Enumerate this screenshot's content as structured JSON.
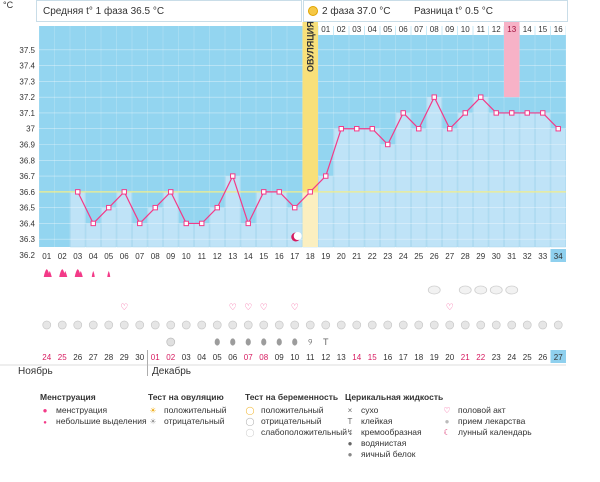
{
  "header": {
    "phase1_label": "Средняя t° 1 фаза",
    "phase1_value": "36.5 °C",
    "phase2_label": "2 фаза",
    "phase2_value": "37.0 °C",
    "diff_label": "Разница t°",
    "diff_value": "0.5 °C"
  },
  "chart_data": {
    "type": "line",
    "title": "Базальная температура",
    "ylabel": "°C",
    "ylim": [
      36.2,
      37.6
    ],
    "y_ticks": [
      "37.5",
      "37.4",
      "37.3",
      "37.2",
      "37.1",
      "37",
      "36.9",
      "36.8",
      "36.7",
      "36.6",
      "36.5",
      "36.4",
      "36.3",
      "36.2"
    ],
    "cycle_days": [
      "01",
      "02",
      "03",
      "04",
      "05",
      "06",
      "07",
      "08",
      "09",
      "10",
      "11",
      "12",
      "13",
      "14",
      "15",
      "16",
      "17",
      "18",
      "19",
      "20",
      "21",
      "22",
      "23",
      "24",
      "25",
      "26",
      "27",
      "28",
      "29",
      "30",
      "31",
      "32",
      "33",
      "34"
    ],
    "luteal_day_labels": [
      "01",
      "02",
      "03",
      "04",
      "05",
      "06",
      "07",
      "08",
      "09",
      "10",
      "11",
      "12",
      "13",
      "14",
      "15",
      "16"
    ],
    "calendar_dates": [
      "24",
      "25",
      "26",
      "27",
      "28",
      "29",
      "30",
      "01",
      "02",
      "03",
      "04",
      "05",
      "06",
      "07",
      "08",
      "09",
      "10",
      "11",
      "12",
      "13",
      "14",
      "15",
      "16",
      "17",
      "18",
      "19",
      "20",
      "21",
      "22",
      "23",
      "24",
      "25",
      "26",
      "27"
    ],
    "calendar_red_index": [
      0,
      1,
      7,
      8,
      13,
      14,
      20,
      21,
      27,
      28
    ],
    "temperatures": [
      null,
      null,
      36.6,
      36.4,
      36.5,
      36.6,
      36.4,
      36.5,
      36.6,
      36.4,
      36.4,
      36.5,
      36.7,
      36.4,
      36.6,
      36.6,
      36.5,
      36.6,
      36.7,
      37.0,
      37.0,
      37.0,
      36.9,
      37.1,
      37.0,
      37.2,
      37.0,
      37.1,
      37.2,
      37.1,
      37.1,
      37.1,
      37.1,
      37.0
    ],
    "coverline": 36.6,
    "ovulation_label": "ОВУЛЯЦИЯ",
    "ovulation_day_index": 17,
    "highlight_luteal_day": "13",
    "current_day_index": 33,
    "months": [
      "Ноябрь",
      "Декабрь"
    ],
    "markers": {
      "menstruation": [
        0,
        1,
        2
      ],
      "spotting": [
        3,
        4
      ],
      "intercourse": [
        5,
        12,
        13,
        14,
        16,
        26
      ],
      "pregnancy_tests": [
        25,
        27,
        28,
        29,
        30
      ],
      "pills": [
        0,
        1,
        2,
        3,
        4,
        5,
        6,
        7,
        8,
        9,
        10,
        11,
        12,
        13,
        14,
        15,
        16,
        17,
        18,
        19,
        20,
        21,
        22,
        23,
        24,
        25,
        26,
        27,
        28,
        29,
        30,
        31,
        32,
        33
      ],
      "mucus_eggwhite": [
        11,
        12,
        13,
        14,
        15,
        16
      ],
      "mucus_creamy": [
        17
      ],
      "mucus_sticky": [
        18
      ],
      "ovulation_test_neg": [
        8
      ]
    }
  },
  "legend": {
    "menstruation_title": "Менструация",
    "menstruation_items": [
      "менструация",
      "небольшие выделения"
    ],
    "ovulation_test_title": "Тест на овуляцию",
    "ovulation_test_items": [
      "положительный",
      "отрицательный"
    ],
    "pregnancy_test_title": "Тест на беременность",
    "pregnancy_test_items": [
      "положительный",
      "отрицательный",
      "слабоположительный"
    ],
    "cervical_title": "Церикальная жидкость",
    "cervical_items": [
      "сухо",
      "клейкая",
      "кремообразная",
      "водянистая",
      "яичный белок"
    ],
    "other_items": [
      "половой акт",
      "прием лекарства",
      "лунный календарь"
    ]
  },
  "colors": {
    "bar": "#bfe3f7",
    "bg_sky": "#93d5f0",
    "line": "#f33a88",
    "ovulation": "#f8e07a",
    "accent": "#d61a5f"
  }
}
